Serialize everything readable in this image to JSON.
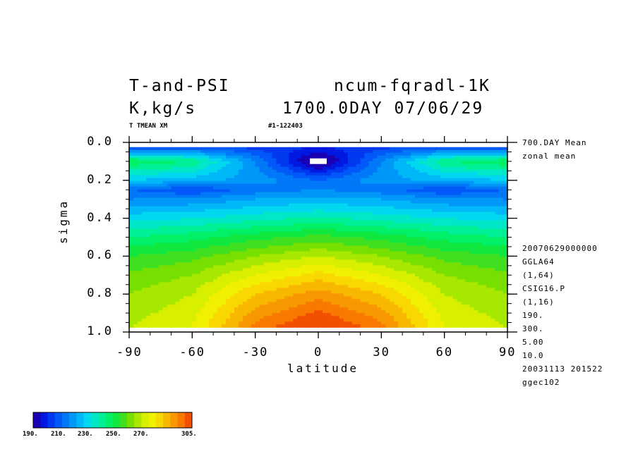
{
  "header": {
    "left_line1": "T-and-PSI",
    "left_line2": "K,kg/s",
    "right_line1": "ncum-fqradl-1K",
    "right_line2": "1700.0DAY 07/06/29",
    "var_label": "T TMEAN XM",
    "run_label": "#1-122403"
  },
  "side_info": {
    "lines_top": [
      "700.DAY Mean",
      "zonal mean"
    ],
    "lines_bottom": [
      "20070629000000",
      "GGLA64",
      "(1,64)",
      "CSIG16.P",
      "(1,16)",
      "190.",
      "300.",
      "5.00",
      "10.0",
      "20031113 201522",
      "ggec102"
    ]
  },
  "colorbar": {
    "labels": [
      "190.",
      "210.",
      "230.",
      "250.",
      "270.",
      "305."
    ],
    "colors": [
      "#1a00b4",
      "#0018e0",
      "#0038f0",
      "#0058f8",
      "#0078f8",
      "#0098f8",
      "#00b8f8",
      "#00d8f0",
      "#00e8c8",
      "#00f098",
      "#00f068",
      "#10e840",
      "#40e020",
      "#78e000",
      "#a8e800",
      "#d8f000",
      "#f0f000",
      "#f8d800",
      "#f8b800",
      "#f89800",
      "#f87800",
      "#f05000"
    ]
  },
  "chart_data": {
    "type": "heatmap",
    "title": "T-and-PSI",
    "xlabel": "latitude",
    "ylabel": "sigma",
    "xlim": [
      -90,
      90
    ],
    "ylim": [
      0.0,
      1.0
    ],
    "y_inverted": true,
    "x_ticks": [
      "-90",
      "-60",
      "-30",
      "0",
      "30",
      "60",
      "90"
    ],
    "y_ticks": [
      "0.0",
      "0.2",
      "0.4",
      "0.6",
      "0.8",
      "1.0"
    ],
    "units": "K",
    "color_range": [
      190,
      305
    ],
    "contour_interval": 5,
    "latitudes": [
      -90,
      -60,
      -30,
      0,
      30,
      60,
      90
    ],
    "sigma_levels": [
      0.025,
      0.1,
      0.2,
      0.25,
      0.3,
      0.4,
      0.5,
      0.6,
      0.7,
      0.8,
      0.9,
      0.975
    ],
    "values": [
      [
        205,
        206,
        203,
        200,
        203,
        206,
        205
      ],
      [
        245,
        240,
        215,
        185,
        215,
        240,
        245
      ],
      [
        225,
        222,
        218,
        210,
        218,
        222,
        225
      ],
      [
        210,
        205,
        212,
        215,
        212,
        205,
        210
      ],
      [
        215,
        216,
        220,
        222,
        220,
        216,
        215
      ],
      [
        228,
        230,
        233,
        236,
        233,
        230,
        228
      ],
      [
        240,
        243,
        248,
        252,
        248,
        243,
        240
      ],
      [
        250,
        253,
        260,
        265,
        260,
        253,
        250
      ],
      [
        256,
        260,
        270,
        277,
        270,
        260,
        256
      ],
      [
        260,
        265,
        280,
        288,
        280,
        265,
        260
      ],
      [
        263,
        268,
        287,
        296,
        287,
        268,
        263
      ],
      [
        265,
        270,
        292,
        302,
        292,
        270,
        265
      ]
    ]
  }
}
